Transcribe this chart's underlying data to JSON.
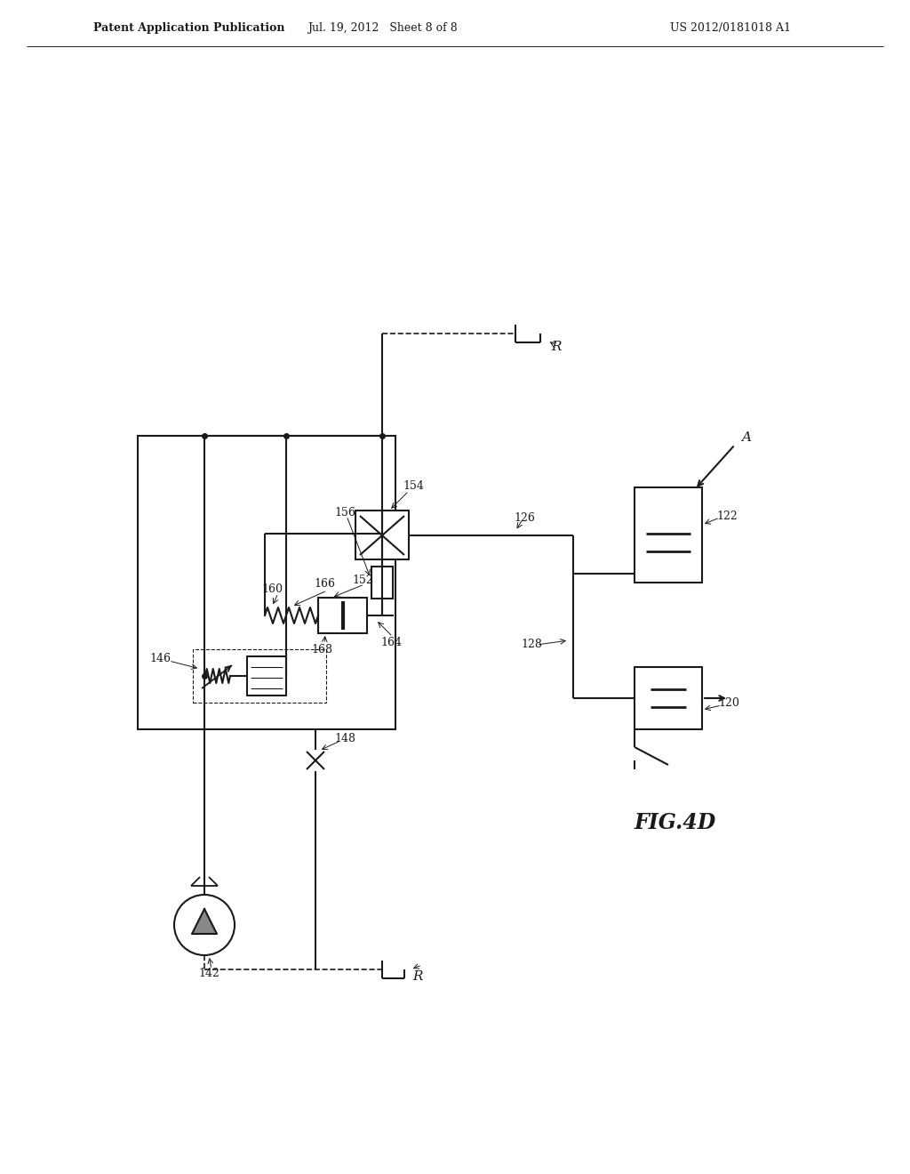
{
  "header_left": "Patent Application Publication",
  "header_center": "Jul. 19, 2012   Sheet 8 of 8",
  "header_right": "US 2012/0181018 A1",
  "fig_label": "FIG.4D",
  "bg": "#ffffff",
  "lc": "#1a1a1a",
  "lw": 1.5
}
